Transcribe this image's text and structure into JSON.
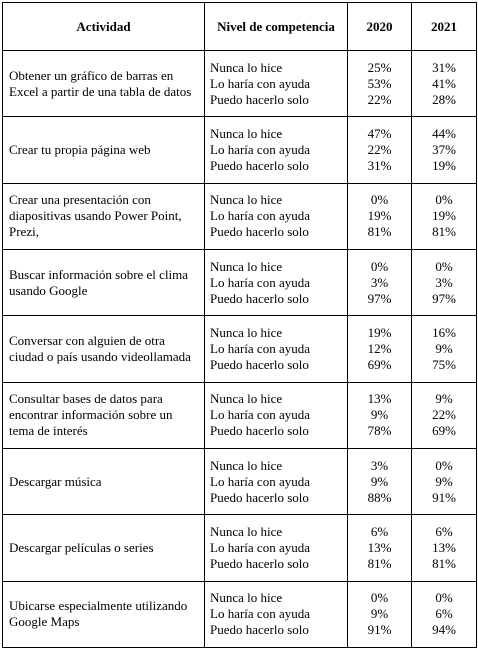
{
  "headers": {
    "actividad": "Actividad",
    "nivel": "Nivel de competencia",
    "y2020": "2020",
    "y2021": "2021"
  },
  "levels": [
    "Nunca lo hice",
    "Lo haría con ayuda",
    "Puedo hacerlo solo"
  ],
  "rows": [
    {
      "actividad": "Obtener un gráfico de barras en Excel a partir de una tabla de datos",
      "y2020": [
        "25%",
        "53%",
        "22%"
      ],
      "y2021": [
        "31%",
        "41%",
        "28%"
      ]
    },
    {
      "actividad": "Crear tu propia página web",
      "y2020": [
        "47%",
        "22%",
        "31%"
      ],
      "y2021": [
        "44%",
        "37%",
        "19%"
      ]
    },
    {
      "actividad": "Crear una presentación con diapositivas usando Power Point, Prezi,",
      "y2020": [
        "0%",
        "19%",
        "81%"
      ],
      "y2021": [
        "0%",
        "19%",
        "81%"
      ]
    },
    {
      "actividad": "Buscar información sobre el clima usando Google",
      "y2020": [
        "0%",
        "3%",
        "97%"
      ],
      "y2021": [
        "0%",
        "3%",
        "97%"
      ]
    },
    {
      "actividad": "Conversar con alguien de otra ciudad o país usando videollamada",
      "y2020": [
        "19%",
        "12%",
        "69%"
      ],
      "y2021": [
        "16%",
        "9%",
        "75%"
      ]
    },
    {
      "actividad": "Consultar bases de datos para encontrar información sobre un tema de interés",
      "y2020": [
        "13%",
        "9%",
        "78%"
      ],
      "y2021": [
        "9%",
        "22%",
        "69%"
      ]
    },
    {
      "actividad": "Descargar música",
      "y2020": [
        "3%",
        "9%",
        "88%"
      ],
      "y2021": [
        "0%",
        "9%",
        "91%"
      ]
    },
    {
      "actividad": "Descargar películas o series",
      "y2020": [
        "6%",
        "13%",
        "81%"
      ],
      "y2021": [
        "6%",
        "13%",
        "81%"
      ]
    },
    {
      "actividad": "Ubicarse especialmente utilizando Google Maps",
      "y2020": [
        "0%",
        "9%",
        "91%"
      ],
      "y2021": [
        "0%",
        "6%",
        "94%"
      ]
    }
  ]
}
